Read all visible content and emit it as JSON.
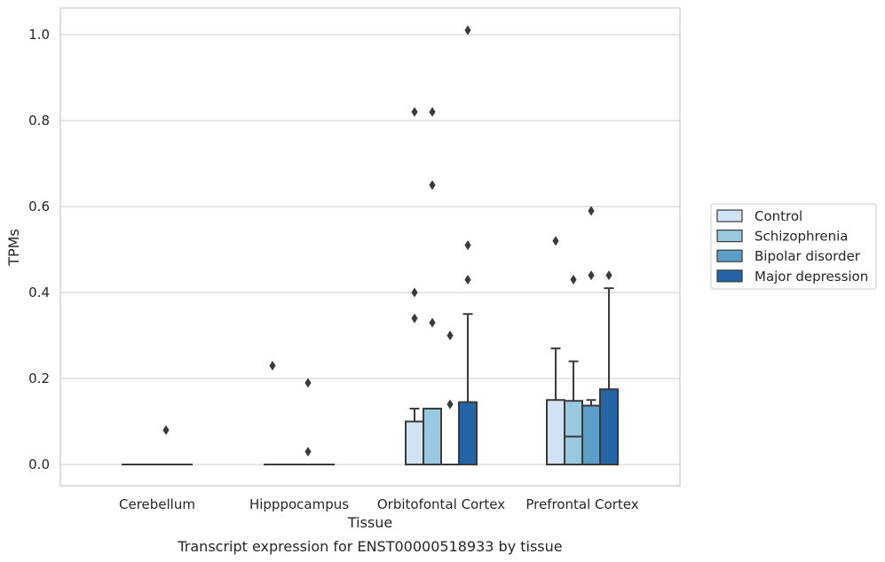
{
  "chart_data": {
    "type": "box",
    "title": "",
    "xlabel": "Tissue",
    "ylabel": "TPMs",
    "caption": "Transcript expression for ENST00000518933 by tissue",
    "ylim": [
      -0.05,
      1.06
    ],
    "yticks": [
      "0.0",
      "0.2",
      "0.4",
      "0.6",
      "0.8",
      "1.0"
    ],
    "ytick_values": [
      0.0,
      0.2,
      0.4,
      0.6,
      0.8,
      1.0
    ],
    "categories": [
      "Cerebellum",
      "Hipppocampus",
      "Orbitofontal Cortex",
      "Prefrontal Cortex"
    ],
    "grid": "horizontal",
    "legend_position": "right",
    "series": [
      {
        "name": "Control",
        "color": "#d1e2f2",
        "boxes": [
          {
            "q1": 0,
            "median": 0,
            "q3": 0,
            "whisker_low": 0,
            "whisker_high": 0,
            "outliers": []
          },
          {
            "q1": 0,
            "median": 0,
            "q3": 0,
            "whisker_low": 0,
            "whisker_high": 0,
            "outliers": [
              0.23
            ]
          },
          {
            "q1": 0,
            "median": 0,
            "q3": 0.1,
            "whisker_low": 0,
            "whisker_high": 0.13,
            "outliers": [
              0.82,
              0.4,
              0.34
            ]
          },
          {
            "q1": 0,
            "median": 0,
            "q3": 0.15,
            "whisker_low": 0,
            "whisker_high": 0.27,
            "outliers": [
              0.52
            ]
          }
        ]
      },
      {
        "name": "Schizophrenia",
        "color": "#9ac8e0",
        "boxes": [
          {
            "q1": 0,
            "median": 0,
            "q3": 0,
            "whisker_low": 0,
            "whisker_high": 0,
            "outliers": []
          },
          {
            "q1": 0,
            "median": 0,
            "q3": 0,
            "whisker_low": 0,
            "whisker_high": 0,
            "outliers": []
          },
          {
            "q1": 0,
            "median": 0,
            "q3": 0.13,
            "whisker_low": 0,
            "whisker_high": 0.13,
            "outliers": [
              0.82,
              0.65,
              0.33
            ]
          },
          {
            "q1": 0,
            "median": 0.065,
            "q3": 0.148,
            "whisker_low": 0,
            "whisker_high": 0.24,
            "outliers": [
              0.43
            ]
          }
        ]
      },
      {
        "name": "Bipolar disorder",
        "color": "#5a9ec9",
        "boxes": [
          {
            "q1": 0,
            "median": 0,
            "q3": 0,
            "whisker_low": 0,
            "whisker_high": 0,
            "outliers": [
              0.08
            ]
          },
          {
            "q1": 0,
            "median": 0,
            "q3": 0,
            "whisker_low": 0,
            "whisker_high": 0,
            "outliers": [
              0.19,
              0.03
            ]
          },
          {
            "q1": 0,
            "median": 0,
            "q3": 0,
            "whisker_low": 0,
            "whisker_high": 0,
            "outliers": [
              0.3,
              0.14
            ]
          },
          {
            "q1": 0,
            "median": 0,
            "q3": 0.137,
            "whisker_low": 0,
            "whisker_high": 0.15,
            "outliers": [
              0.59,
              0.44
            ]
          }
        ]
      },
      {
        "name": "Major depression",
        "color": "#2365a6",
        "boxes": [
          {
            "q1": 0,
            "median": 0,
            "q3": 0,
            "whisker_low": 0,
            "whisker_high": 0,
            "outliers": []
          },
          {
            "q1": 0,
            "median": 0,
            "q3": 0,
            "whisker_low": 0,
            "whisker_high": 0,
            "outliers": []
          },
          {
            "q1": 0,
            "median": 0,
            "q3": 0.145,
            "whisker_low": 0,
            "whisker_high": 0.35,
            "outliers": [
              1.01,
              0.51,
              0.43
            ]
          },
          {
            "q1": 0,
            "median": 0,
            "q3": 0.175,
            "whisker_low": 0,
            "whisker_high": 0.41,
            "outliers": [
              0.44
            ]
          }
        ]
      }
    ]
  }
}
